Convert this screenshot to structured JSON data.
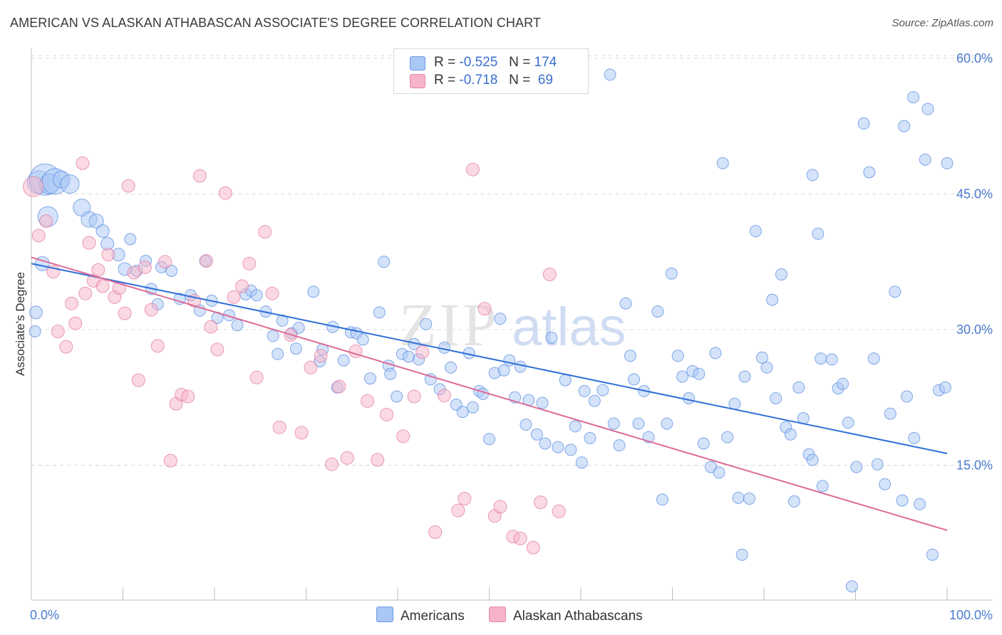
{
  "title": "AMERICAN VS ALASKAN ATHABASCAN ASSOCIATE'S DEGREE CORRELATION CHART",
  "source": "Source: ZipAtlas.com",
  "watermark": {
    "zip": "ZIP",
    "atlas": "atlas"
  },
  "legend": {
    "r_label": "R =",
    "n_label": "N =",
    "rows": [
      {
        "r": "-0.525",
        "n": "174",
        "color": "#a9c8f5"
      },
      {
        "r": "-0.718",
        "n": "69",
        "color": "#f7b3c8"
      }
    ]
  },
  "chart_data": {
    "type": "scatter",
    "xlabel": "",
    "ylabel": "Associate's Degree",
    "xlim": [
      0,
      100
    ],
    "ylim": [
      0,
      60
    ],
    "x_ticks": [
      "0.0%",
      "100.0%"
    ],
    "y_ticks": [
      {
        "v": 15,
        "label": "15.0%"
      },
      {
        "v": 30,
        "label": "30.0%"
      },
      {
        "v": 45,
        "label": "45.0%"
      },
      {
        "v": 60,
        "label": "60.0%"
      }
    ],
    "grid": "horizontal dashed",
    "series": [
      {
        "name": "Americans",
        "color": "#5b8ee0",
        "fill": "#a9c8f5",
        "trend": [
          [
            0,
            37.3
          ],
          [
            100,
            16.3
          ]
        ],
        "points": [
          [
            0.8,
            46.3,
            16
          ],
          [
            1.5,
            46.6,
            22
          ],
          [
            2,
            46.1,
            14
          ],
          [
            2.6,
            46.4,
            18
          ],
          [
            3.3,
            46.6,
            12
          ],
          [
            4.2,
            46.1,
            13
          ],
          [
            1.8,
            42.5,
            14
          ],
          [
            5.5,
            43.5,
            12
          ],
          [
            6.3,
            42.2,
            11
          ],
          [
            7.1,
            42,
            10
          ],
          [
            1.2,
            37.3,
            10
          ],
          [
            0.5,
            31.9,
            9
          ],
          [
            0.4,
            29.8,
            8
          ],
          [
            7.8,
            40.9,
            9
          ],
          [
            8.3,
            39.5,
            9
          ],
          [
            9.5,
            38.3,
            9
          ],
          [
            10.2,
            36.7,
            9
          ],
          [
            10.8,
            40,
            8
          ],
          [
            11.5,
            36.5,
            8
          ],
          [
            12.5,
            37.6,
            8
          ],
          [
            13.1,
            34.5,
            8
          ],
          [
            13.8,
            32.8,
            8
          ],
          [
            14.2,
            36.9,
            8
          ],
          [
            15.3,
            36.5,
            8
          ],
          [
            16.2,
            33.4,
            8
          ],
          [
            17.4,
            33.8,
            8
          ],
          [
            18.4,
            32.1,
            8
          ],
          [
            19,
            37.6,
            8
          ],
          [
            19.7,
            33.2,
            8
          ],
          [
            20.3,
            31.3,
            8
          ],
          [
            21.6,
            31.6,
            8
          ],
          [
            22.5,
            30.5,
            8
          ],
          [
            23.4,
            33.9,
            8
          ],
          [
            24,
            34.3,
            8
          ],
          [
            24.6,
            33.8,
            8
          ],
          [
            25.6,
            32,
            8
          ],
          [
            26.4,
            29.3,
            8
          ],
          [
            26.9,
            27.3,
            8
          ],
          [
            27.4,
            31,
            8
          ],
          [
            28.4,
            29.6,
            8
          ],
          [
            28.9,
            27.9,
            8
          ],
          [
            29.2,
            30.2,
            8
          ],
          [
            30.8,
            34.2,
            8
          ],
          [
            31.5,
            26.5,
            8
          ],
          [
            31.8,
            27.8,
            8
          ],
          [
            32.9,
            30.3,
            8
          ],
          [
            33.4,
            23.6,
            8
          ],
          [
            34.1,
            26.6,
            8
          ],
          [
            34.9,
            29.7,
            8
          ],
          [
            35.5,
            29.6,
            8
          ],
          [
            36.2,
            28.9,
            8
          ],
          [
            37,
            24.6,
            8
          ],
          [
            38,
            31.9,
            8
          ],
          [
            38.5,
            37.5,
            8
          ],
          [
            39,
            26,
            8
          ],
          [
            39.2,
            25.1,
            8
          ],
          [
            39.9,
            22.6,
            8
          ],
          [
            40.5,
            27.3,
            8
          ],
          [
            41.2,
            27,
            8
          ],
          [
            41.8,
            28.4,
            8
          ],
          [
            42.3,
            26.7,
            8
          ],
          [
            43.1,
            30.6,
            8
          ],
          [
            43.6,
            24.5,
            8
          ],
          [
            44.6,
            23.4,
            8
          ],
          [
            45.1,
            28,
            8
          ],
          [
            45.8,
            25.8,
            8
          ],
          [
            46.4,
            21.7,
            8
          ],
          [
            47.1,
            20.9,
            8
          ],
          [
            47.8,
            27.4,
            8
          ],
          [
            48.2,
            21.4,
            8
          ],
          [
            48.9,
            23.2,
            8
          ],
          [
            49.3,
            22.9,
            8
          ],
          [
            50,
            17.9,
            8
          ],
          [
            50.6,
            25.2,
            8
          ],
          [
            51.2,
            31.2,
            8
          ],
          [
            51.6,
            25.5,
            8
          ],
          [
            52.2,
            26.6,
            8
          ],
          [
            52.8,
            22.5,
            8
          ],
          [
            53.4,
            25.9,
            8
          ],
          [
            54,
            19.5,
            8
          ],
          [
            54.3,
            22.2,
            8
          ],
          [
            55.2,
            18.4,
            8
          ],
          [
            55.8,
            21.9,
            8
          ],
          [
            56.1,
            17.4,
            8
          ],
          [
            56.8,
            29.1,
            8
          ],
          [
            57.5,
            17,
            8
          ],
          [
            58.3,
            24.4,
            8
          ],
          [
            58.9,
            16.7,
            8
          ],
          [
            59.4,
            19.3,
            8
          ],
          [
            60.1,
            15.3,
            8
          ],
          [
            60.4,
            23.2,
            8
          ],
          [
            61,
            18,
            8
          ],
          [
            61.5,
            22.1,
            8
          ],
          [
            62.4,
            23.3,
            8
          ],
          [
            63.2,
            58.2,
            8
          ],
          [
            63.6,
            19.6,
            8
          ],
          [
            64.2,
            17.2,
            8
          ],
          [
            64.9,
            32.9,
            8
          ],
          [
            65.4,
            27.1,
            8
          ],
          [
            65.8,
            24.5,
            8
          ],
          [
            66.3,
            19.6,
            8
          ],
          [
            66.9,
            23.2,
            8
          ],
          [
            67.4,
            18.1,
            8
          ],
          [
            68.4,
            32,
            8
          ],
          [
            68.9,
            11.2,
            8
          ],
          [
            69.4,
            19.6,
            8
          ],
          [
            69.9,
            36.2,
            8
          ],
          [
            70.6,
            27.1,
            8
          ],
          [
            71.1,
            24.8,
            8
          ],
          [
            71.8,
            22.4,
            8
          ],
          [
            72.2,
            25.4,
            8
          ],
          [
            72.9,
            25.1,
            8
          ],
          [
            73.4,
            17.4,
            8
          ],
          [
            74.2,
            14.8,
            8
          ],
          [
            74.7,
            27.4,
            8
          ],
          [
            75.1,
            14.2,
            8
          ],
          [
            75.5,
            48.4,
            8
          ],
          [
            76,
            18.1,
            8
          ],
          [
            76.8,
            21.8,
            8
          ],
          [
            77.2,
            11.4,
            8
          ],
          [
            77.6,
            5.1,
            8
          ],
          [
            77.9,
            24.8,
            8
          ],
          [
            78.4,
            11.3,
            8
          ],
          [
            79.1,
            40.9,
            8
          ],
          [
            79.8,
            26.9,
            8
          ],
          [
            80.3,
            25.8,
            8
          ],
          [
            80.9,
            33.3,
            8
          ],
          [
            81.3,
            22.4,
            8
          ],
          [
            81.9,
            36.1,
            8
          ],
          [
            82.4,
            19.2,
            8
          ],
          [
            82.9,
            18.4,
            8
          ],
          [
            83.3,
            11,
            8
          ],
          [
            83.8,
            23.6,
            8
          ],
          [
            84.3,
            20.2,
            8
          ],
          [
            84.9,
            16.2,
            8
          ],
          [
            85.3,
            15.6,
            8
          ],
          [
            85.9,
            40.6,
            8
          ],
          [
            86.4,
            12.7,
            8
          ],
          [
            87.4,
            26.7,
            8
          ],
          [
            88.1,
            23.5,
            8
          ],
          [
            88.6,
            24,
            8
          ],
          [
            89.2,
            19.7,
            8
          ],
          [
            89.6,
            1.6,
            8
          ],
          [
            90.1,
            14.8,
            8
          ],
          [
            90.9,
            52.8,
            8
          ],
          [
            91.5,
            47.4,
            8
          ],
          [
            92,
            26.8,
            8
          ],
          [
            92.4,
            15.1,
            8
          ],
          [
            93.2,
            12.9,
            8
          ],
          [
            93.8,
            20.7,
            8
          ],
          [
            94.3,
            34.2,
            8
          ],
          [
            95.1,
            11.1,
            8
          ],
          [
            95.6,
            22.6,
            8
          ],
          [
            96.4,
            18,
            8
          ],
          [
            97,
            10.7,
            8
          ],
          [
            97.9,
            54.4,
            8
          ],
          [
            98.4,
            5.1,
            8
          ],
          [
            99.1,
            23.3,
            8
          ],
          [
            100,
            48.4,
            8
          ],
          [
            95.3,
            52.5,
            8
          ],
          [
            96.3,
            55.7,
            8
          ],
          [
            97.6,
            48.8,
            8
          ],
          [
            99.8,
            23.6,
            8
          ],
          [
            86.2,
            26.8,
            8
          ],
          [
            85.3,
            47.1,
            8
          ]
        ]
      },
      {
        "name": "Alaskan Athabascans",
        "color": "#e07ba0",
        "fill": "#f7b3c8",
        "trend": [
          [
            0,
            38
          ],
          [
            100,
            7.8
          ]
        ],
        "points": [
          [
            0.2,
            45.8,
            14
          ],
          [
            0.8,
            40.4,
            9
          ],
          [
            1.6,
            42,
            9
          ],
          [
            2.4,
            36.4,
            9
          ],
          [
            2.9,
            29.8,
            9
          ],
          [
            3.8,
            28.1,
            9
          ],
          [
            4.4,
            32.9,
            9
          ],
          [
            4.8,
            30.7,
            9
          ],
          [
            5.6,
            48.4,
            9
          ],
          [
            5.9,
            34,
            9
          ],
          [
            6.3,
            39.6,
            9
          ],
          [
            6.8,
            35.4,
            9
          ],
          [
            7.3,
            36.6,
            9
          ],
          [
            7.8,
            34.8,
            9
          ],
          [
            8.4,
            38.3,
            9
          ],
          [
            9.1,
            33.6,
            9
          ],
          [
            9.6,
            34.6,
            9
          ],
          [
            10.2,
            31.8,
            9
          ],
          [
            10.6,
            45.9,
            9
          ],
          [
            11.2,
            36.3,
            9
          ],
          [
            11.7,
            24.4,
            9
          ],
          [
            12.4,
            36.9,
            9
          ],
          [
            13.1,
            32.2,
            9
          ],
          [
            13.8,
            28.2,
            9
          ],
          [
            14.6,
            37.5,
            9
          ],
          [
            15.2,
            15.5,
            9
          ],
          [
            15.8,
            21.8,
            9
          ],
          [
            16.4,
            22.8,
            9
          ],
          [
            17.1,
            22.6,
            9
          ],
          [
            17.8,
            33.2,
            9
          ],
          [
            18.4,
            47,
            9
          ],
          [
            19.1,
            37.6,
            9
          ],
          [
            19.6,
            30.3,
            9
          ],
          [
            20.3,
            27.8,
            9
          ],
          [
            21.2,
            45.1,
            9
          ],
          [
            22.1,
            33.6,
            9
          ],
          [
            23,
            34.8,
            9
          ],
          [
            23.8,
            37.3,
            9
          ],
          [
            24.6,
            24.7,
            9
          ],
          [
            25.5,
            40.8,
            9
          ],
          [
            26.3,
            34,
            9
          ],
          [
            27.1,
            19.2,
            9
          ],
          [
            28.3,
            29.4,
            9
          ],
          [
            29.5,
            18.6,
            9
          ],
          [
            30.5,
            25.8,
            9
          ],
          [
            31.6,
            27.1,
            9
          ],
          [
            32.8,
            15.1,
            9
          ],
          [
            33.6,
            23.7,
            9
          ],
          [
            34.5,
            15.8,
            9
          ],
          [
            35.4,
            27.6,
            9
          ],
          [
            36.7,
            22.1,
            9
          ],
          [
            37.8,
            15.6,
            9
          ],
          [
            38.8,
            20.6,
            9
          ],
          [
            40.6,
            18.2,
            9
          ],
          [
            41.8,
            22.6,
            9
          ],
          [
            42.7,
            27.5,
            9
          ],
          [
            44.1,
            7.6,
            9
          ],
          [
            45.1,
            22.7,
            9
          ],
          [
            46.6,
            10,
            9
          ],
          [
            47.3,
            11.3,
            9
          ],
          [
            48.2,
            47.7,
            9
          ],
          [
            49.5,
            32.3,
            9
          ],
          [
            50.6,
            9.4,
            9
          ],
          [
            51.2,
            10.4,
            9
          ],
          [
            52.6,
            7.1,
            9
          ],
          [
            53.4,
            6.9,
            9
          ],
          [
            54.8,
            5.9,
            9
          ],
          [
            55.6,
            10.9,
            9
          ],
          [
            56.6,
            36.1,
            9
          ],
          [
            57.6,
            9.9,
            9
          ]
        ]
      }
    ]
  },
  "legend_bottom": [
    {
      "label": "Americans",
      "color": "#a9c8f5"
    },
    {
      "label": "Alaskan Athabascans",
      "color": "#f7b3c8"
    }
  ]
}
